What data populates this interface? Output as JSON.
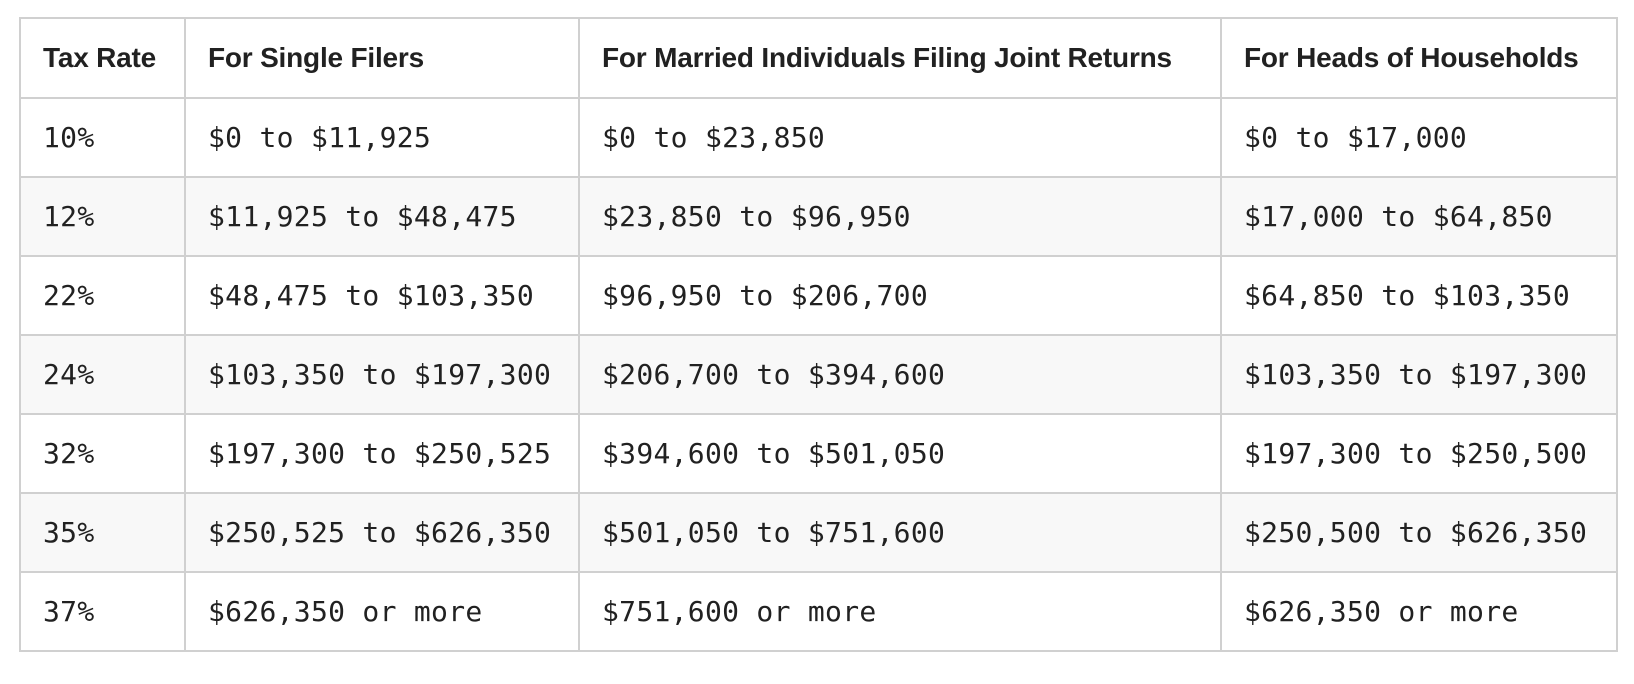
{
  "table": {
    "headers": [
      "Tax Rate",
      "For Single Filers",
      "For Married Individuals Filing Joint Returns",
      "For Heads of Households"
    ],
    "rows": [
      [
        "10%",
        "$0 to $11,925",
        "$0 to $23,850",
        "$0 to $17,000"
      ],
      [
        "12%",
        "$11,925 to $48,475",
        "$23,850 to $96,950",
        "$17,000 to $64,850"
      ],
      [
        "22%",
        "$48,475 to $103,350",
        "$96,950 to $206,700",
        "$64,850 to $103,350"
      ],
      [
        "24%",
        "$103,350 to $197,300",
        "$206,700 to $394,600",
        "$103,350 to $197,300"
      ],
      [
        "32%",
        "$197,300 to $250,525",
        "$394,600 to $501,050",
        "$197,300 to $250,500"
      ],
      [
        "35%",
        "$250,525 to $626,350",
        "$501,050 to $751,600",
        "$250,500 to $626,350"
      ],
      [
        "37%",
        "$626,350 or more",
        "$751,600 or more",
        "$626,350 or more"
      ]
    ]
  },
  "colors": {
    "border": "#d0d0d0",
    "text": "#212121",
    "stripe": "#f8f8f8",
    "background": "#ffffff"
  }
}
